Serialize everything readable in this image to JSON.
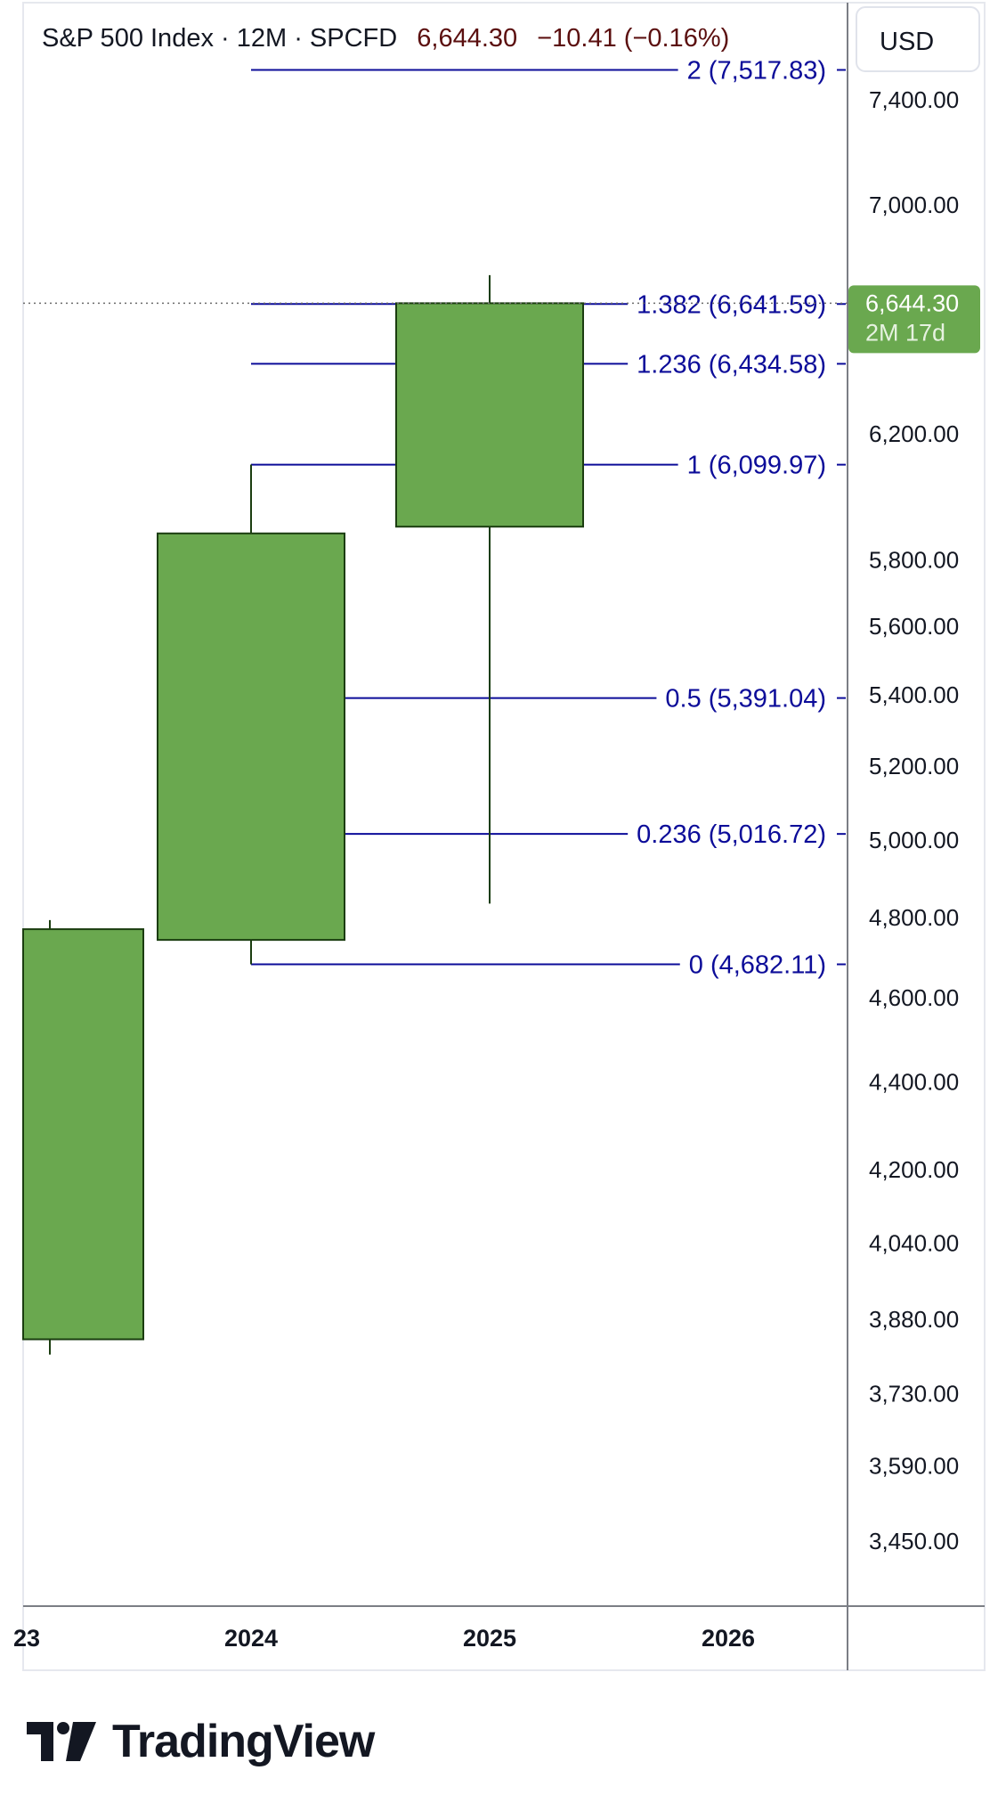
{
  "legend": {
    "symbol": "S&P 500 Index · 12M · SPCFD",
    "last": "6,644.30",
    "change": "−10.41 (−0.16%)"
  },
  "currency_button": "USD",
  "price_badge": {
    "price": "6,644.30",
    "countdown": "2M 17d"
  },
  "brand": {
    "name": "TradingView"
  },
  "colors": {
    "candle_fill": "#6aa84f",
    "candle_border": "#1b3d10",
    "fib_line": "#0c0c99",
    "legend_value": "#5b0f0f",
    "badge": "#6aa84f"
  },
  "chart_data": {
    "type": "candlestick",
    "scale": "log",
    "ylim": [
      3300,
      7800
    ],
    "x_labels": [
      "23",
      "2024",
      "2025",
      "2026"
    ],
    "y_ticks": [
      "7,400.00",
      "7,000.00",
      "6,200.00",
      "5,800.00",
      "5,600.00",
      "5,400.00",
      "5,200.00",
      "5,000.00",
      "4,800.00",
      "4,600.00",
      "4,400.00",
      "4,200.00",
      "4,040.00",
      "3,880.00",
      "3,730.00",
      "3,590.00",
      "3,450.00"
    ],
    "y_tick_values": [
      7400,
      7000,
      6200,
      5800,
      5600,
      5400,
      5200,
      5000,
      4800,
      4600,
      4400,
      4200,
      4040,
      3880,
      3730,
      3590,
      3450
    ],
    "candles": [
      {
        "period": "2023",
        "open": 3839,
        "high": 4793,
        "low": 3808,
        "close": 4770
      },
      {
        "period": "2024",
        "open": 4743,
        "high": 6099.97,
        "low": 4682.11,
        "close": 5882
      },
      {
        "period": "2025",
        "open": 5903,
        "high": 6744,
        "low": 4835,
        "close": 6644.3
      }
    ],
    "fibonacci": [
      {
        "label": "2 (7,517.83)",
        "level": 2,
        "price": 7517.83
      },
      {
        "label": "1.382 (6,641.59)",
        "level": 1.382,
        "price": 6641.59
      },
      {
        "label": "1.236 (6,434.58)",
        "level": 1.236,
        "price": 6434.58
      },
      {
        "label": "1 (6,099.97)",
        "level": 1,
        "price": 6099.97
      },
      {
        "label": "0.5 (5,391.04)",
        "level": 0.5,
        "price": 5391.04
      },
      {
        "label": "0.236 (5,016.72)",
        "level": 0.236,
        "price": 5016.72
      },
      {
        "label": "0 (4,682.11)",
        "level": 0,
        "price": 4682.11
      }
    ],
    "last_price": 6644.3
  }
}
